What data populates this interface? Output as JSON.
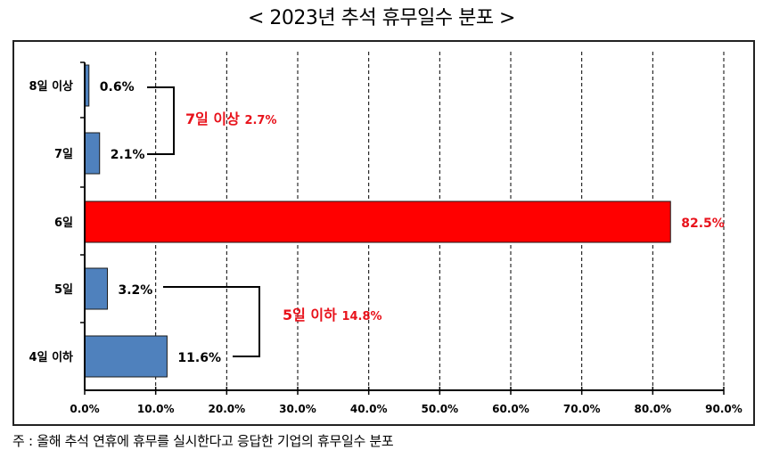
{
  "title": "< 2023년 추석 휴무일수 분포 >",
  "footnote": "주 : 올해 추석 연휴에 휴무를 실시한다고 응답한 기업의 휴무일수 분포",
  "colors": {
    "bar_default": "#4F81BD",
    "bar_highlight": "#FF0000",
    "annotation": "#E8121B",
    "axis": "#000000"
  },
  "chart_data": {
    "type": "bar",
    "orientation": "horizontal",
    "title": "< 2023년 추석 휴무일수 분포 >",
    "xlabel": "",
    "ylabel": "",
    "xlim": [
      0,
      90
    ],
    "x_ticks": [
      "0.0%",
      "10.0%",
      "20.0%",
      "30.0%",
      "40.0%",
      "50.0%",
      "60.0%",
      "70.0%",
      "80.0%",
      "90.0%"
    ],
    "grid": "vertical dashed",
    "categories": [
      "8일 이상",
      "7일",
      "6일",
      "5일",
      "4일 이하"
    ],
    "values": [
      0.6,
      2.1,
      82.5,
      3.2,
      11.6
    ],
    "value_labels": [
      "0.6%",
      "2.1%",
      "82.5%",
      "3.2%",
      "11.6%"
    ],
    "highlight_category": "6일",
    "annotations": [
      {
        "text_label": "7일 이상",
        "text_value": "2.7%",
        "groups": [
          "8일 이상",
          "7일"
        ],
        "value": 2.7
      },
      {
        "text_label": "5일 이하",
        "text_value": "14.8%",
        "groups": [
          "5일",
          "4일 이하"
        ],
        "value": 14.8
      }
    ],
    "note": "주 : 올해 추석 연휴에 휴무를 실시한다고 응답한 기업의 휴무일수 분포"
  }
}
